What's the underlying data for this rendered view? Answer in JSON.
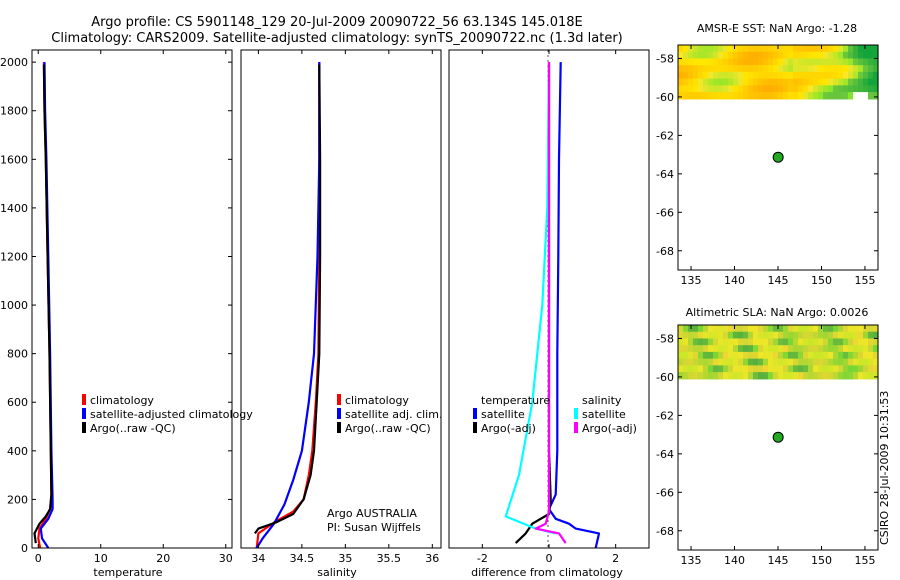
{
  "header": {
    "line1": "Argo profile: CS 5901148_129 20-Jul-2009 20090722_56 63.134S 145.018E",
    "line2": "Climatology: CARS2009. Satellite-adjusted climatology: synTS_20090722.nc (1.3d later)"
  },
  "credit": "CSIRO 28-Jul-2009 10:31:53",
  "colors": {
    "clim": "#ff0000",
    "sat": "#0000ff",
    "argo": "#000000",
    "sal_sat": "#00ffff",
    "sal_argo": "#ff00ff",
    "marker": "#22aa22"
  },
  "chart_data": [
    {
      "id": "temperature",
      "type": "line",
      "xlabel": "temperature",
      "ylabel": "",
      "title": "",
      "xlim": [
        -1,
        31
      ],
      "ylim": [
        2050,
        0
      ],
      "xticks": [
        0,
        10,
        20,
        30
      ],
      "yticks": [
        0,
        200,
        400,
        600,
        800,
        1000,
        1200,
        1400,
        1600,
        1800,
        2000
      ],
      "series": [
        {
          "name": "climatology",
          "color": "#ff0000",
          "points": [
            [
              0.3,
              0
            ],
            [
              0.0,
              40
            ],
            [
              0.2,
              80
            ],
            [
              1.2,
              120
            ],
            [
              1.9,
              160
            ],
            [
              2.1,
              220
            ],
            [
              2.0,
              400
            ],
            [
              1.8,
              800
            ],
            [
              1.5,
              1200
            ],
            [
              1.2,
              1600
            ],
            [
              1.0,
              1800
            ],
            [
              0.9,
              2000
            ]
          ]
        },
        {
          "name": "satellite-adjusted climatology",
          "color": "#0000ff",
          "points": [
            [
              1.6,
              0
            ],
            [
              0.6,
              40
            ],
            [
              0.4,
              80
            ],
            [
              1.6,
              120
            ],
            [
              2.3,
              160
            ],
            [
              2.3,
              200
            ],
            [
              2.1,
              400
            ],
            [
              1.9,
              800
            ],
            [
              1.6,
              1200
            ],
            [
              1.3,
              1600
            ],
            [
              1.1,
              1800
            ],
            [
              1.0,
              2000
            ]
          ]
        },
        {
          "name": "Argo(..raw -QC)",
          "color": "#000000",
          "points": [
            [
              -0.4,
              20
            ],
            [
              -0.6,
              60
            ],
            [
              0.2,
              100
            ],
            [
              1.2,
              130
            ],
            [
              1.9,
              160
            ],
            [
              2.1,
              220
            ],
            [
              2.0,
              400
            ],
            [
              1.8,
              800
            ],
            [
              1.5,
              1200
            ],
            [
              1.2,
              1600
            ],
            [
              1.0,
              1800
            ],
            [
              0.9,
              1990
            ]
          ]
        }
      ],
      "legend": [
        "climatology",
        "satellite-adjusted climatology",
        "Argo(..raw -QC)"
      ]
    },
    {
      "id": "salinity",
      "type": "line",
      "xlabel": "salinity",
      "ylabel": "",
      "title": "",
      "xlim": [
        33.8,
        36.1
      ],
      "ylim": [
        2050,
        0
      ],
      "xticks": [
        34,
        34.5,
        35,
        35.5,
        36
      ],
      "yticks": [
        0,
        200,
        400,
        600,
        800,
        1000,
        1200,
        1400,
        1600,
        1800,
        2000
      ],
      "series": [
        {
          "name": "climatology",
          "color": "#ff0000",
          "points": [
            [
              33.98,
              0
            ],
            [
              34.0,
              60
            ],
            [
              34.2,
              110
            ],
            [
              34.4,
              150
            ],
            [
              34.52,
              200
            ],
            [
              34.58,
              300
            ],
            [
              34.62,
              400
            ],
            [
              34.66,
              600
            ],
            [
              34.69,
              800
            ],
            [
              34.7,
              1200
            ],
            [
              34.7,
              1600
            ],
            [
              34.7,
              2000
            ]
          ]
        },
        {
          "name": "satellite adj. clim.",
          "color": "#0000ff",
          "points": [
            [
              33.98,
              0
            ],
            [
              34.05,
              40
            ],
            [
              34.18,
              100
            ],
            [
              34.3,
              180
            ],
            [
              34.4,
              280
            ],
            [
              34.5,
              400
            ],
            [
              34.58,
              600
            ],
            [
              34.64,
              800
            ],
            [
              34.68,
              1200
            ],
            [
              34.7,
              1600
            ],
            [
              34.7,
              2000
            ]
          ]
        },
        {
          "name": "Argo(..raw -QC)",
          "color": "#000000",
          "points": [
            [
              33.96,
              60
            ],
            [
              34.0,
              80
            ],
            [
              34.2,
              105
            ],
            [
              34.4,
              140
            ],
            [
              34.52,
              200
            ],
            [
              34.6,
              300
            ],
            [
              34.64,
              400
            ],
            [
              34.67,
              600
            ],
            [
              34.7,
              800
            ],
            [
              34.71,
              1200
            ],
            [
              34.71,
              1600
            ],
            [
              34.7,
              1990
            ]
          ]
        }
      ],
      "legend": [
        "climatology",
        "satellite adj. clim.",
        "Argo(..raw -QC)"
      ],
      "annotation": [
        "Argo AUSTRALIA",
        "PI: Susan Wijffels"
      ]
    },
    {
      "id": "difference",
      "type": "line",
      "xlabel": "difference from climatology",
      "ylabel": "",
      "title": "",
      "xlim": [
        -3,
        3
      ],
      "ylim": [
        2050,
        0
      ],
      "xticks": [
        -2,
        0,
        2
      ],
      "yticks": [
        0,
        200,
        400,
        600,
        800,
        1000,
        1200,
        1400,
        1600,
        1800,
        2000
      ],
      "series": [
        {
          "name": "temperature satellite",
          "color": "#0000ff",
          "points": [
            [
              1.4,
              0
            ],
            [
              1.5,
              60
            ],
            [
              0.8,
              80
            ],
            [
              0.6,
              100
            ],
            [
              0.2,
              120
            ],
            [
              0.0,
              160
            ],
            [
              0.2,
              220
            ],
            [
              0.25,
              400
            ],
            [
              0.25,
              800
            ],
            [
              0.28,
              1200
            ],
            [
              0.3,
              1600
            ],
            [
              0.35,
              2000
            ]
          ]
        },
        {
          "name": "temperature Argo(-adj)",
          "color": "#000000",
          "points": [
            [
              -1.0,
              20
            ],
            [
              -0.7,
              60
            ],
            [
              -0.5,
              100
            ],
            [
              0.0,
              140
            ],
            [
              0.05,
              200
            ],
            [
              0.0,
              400
            ],
            [
              0.0,
              1200
            ],
            [
              0.0,
              2000
            ]
          ]
        },
        {
          "name": "salinity satellite",
          "color": "#00ffff",
          "points": [
            [
              0.2,
              60
            ],
            [
              -0.4,
              80
            ],
            [
              -1.3,
              130
            ],
            [
              -0.9,
              300
            ],
            [
              -0.5,
              600
            ],
            [
              -0.2,
              1000
            ],
            [
              -0.05,
              1400
            ],
            [
              0.0,
              2000
            ]
          ]
        },
        {
          "name": "salinity Argo(-adj)",
          "color": "#ff00ff",
          "points": [
            [
              0.5,
              20
            ],
            [
              0.3,
              60
            ],
            [
              -0.4,
              80
            ],
            [
              -0.1,
              100
            ],
            [
              0.0,
              150
            ],
            [
              0.0,
              2000
            ]
          ]
        }
      ],
      "legend_groups": {
        "temperature": {
          "title": "temperature",
          "items": [
            "satellite",
            "Argo(-adj)"
          ]
        },
        "salinity": {
          "title": "salinity",
          "items": [
            "satellite",
            "Argo(-adj)"
          ]
        }
      }
    },
    {
      "id": "sst_map",
      "type": "heatmap",
      "title": "AMSR-E SST: NaN Argo: -1.28",
      "xlim": [
        133.5,
        156.5
      ],
      "ylim": [
        -69,
        -57.3
      ],
      "xticks": [
        135,
        140,
        145,
        150,
        155
      ],
      "yticks": [
        -58,
        -60,
        -62,
        -64,
        -66,
        -68
      ],
      "data_extent_lat": [
        -57.3,
        -60.1
      ],
      "marker": {
        "lon": 145.018,
        "lat": -63.134
      }
    },
    {
      "id": "sla_map",
      "type": "heatmap",
      "title": "Altimetric SLA: NaN Argo: 0.0026",
      "xlim": [
        133.5,
        156.5
      ],
      "ylim": [
        -69,
        -57.3
      ],
      "xticks": [
        135,
        140,
        145,
        150,
        155
      ],
      "yticks": [
        -58,
        -60,
        -62,
        -64,
        -66,
        -68
      ],
      "data_extent_lat": [
        -57.3,
        -60.1
      ],
      "marker": {
        "lon": 145.018,
        "lat": -63.134
      }
    }
  ]
}
